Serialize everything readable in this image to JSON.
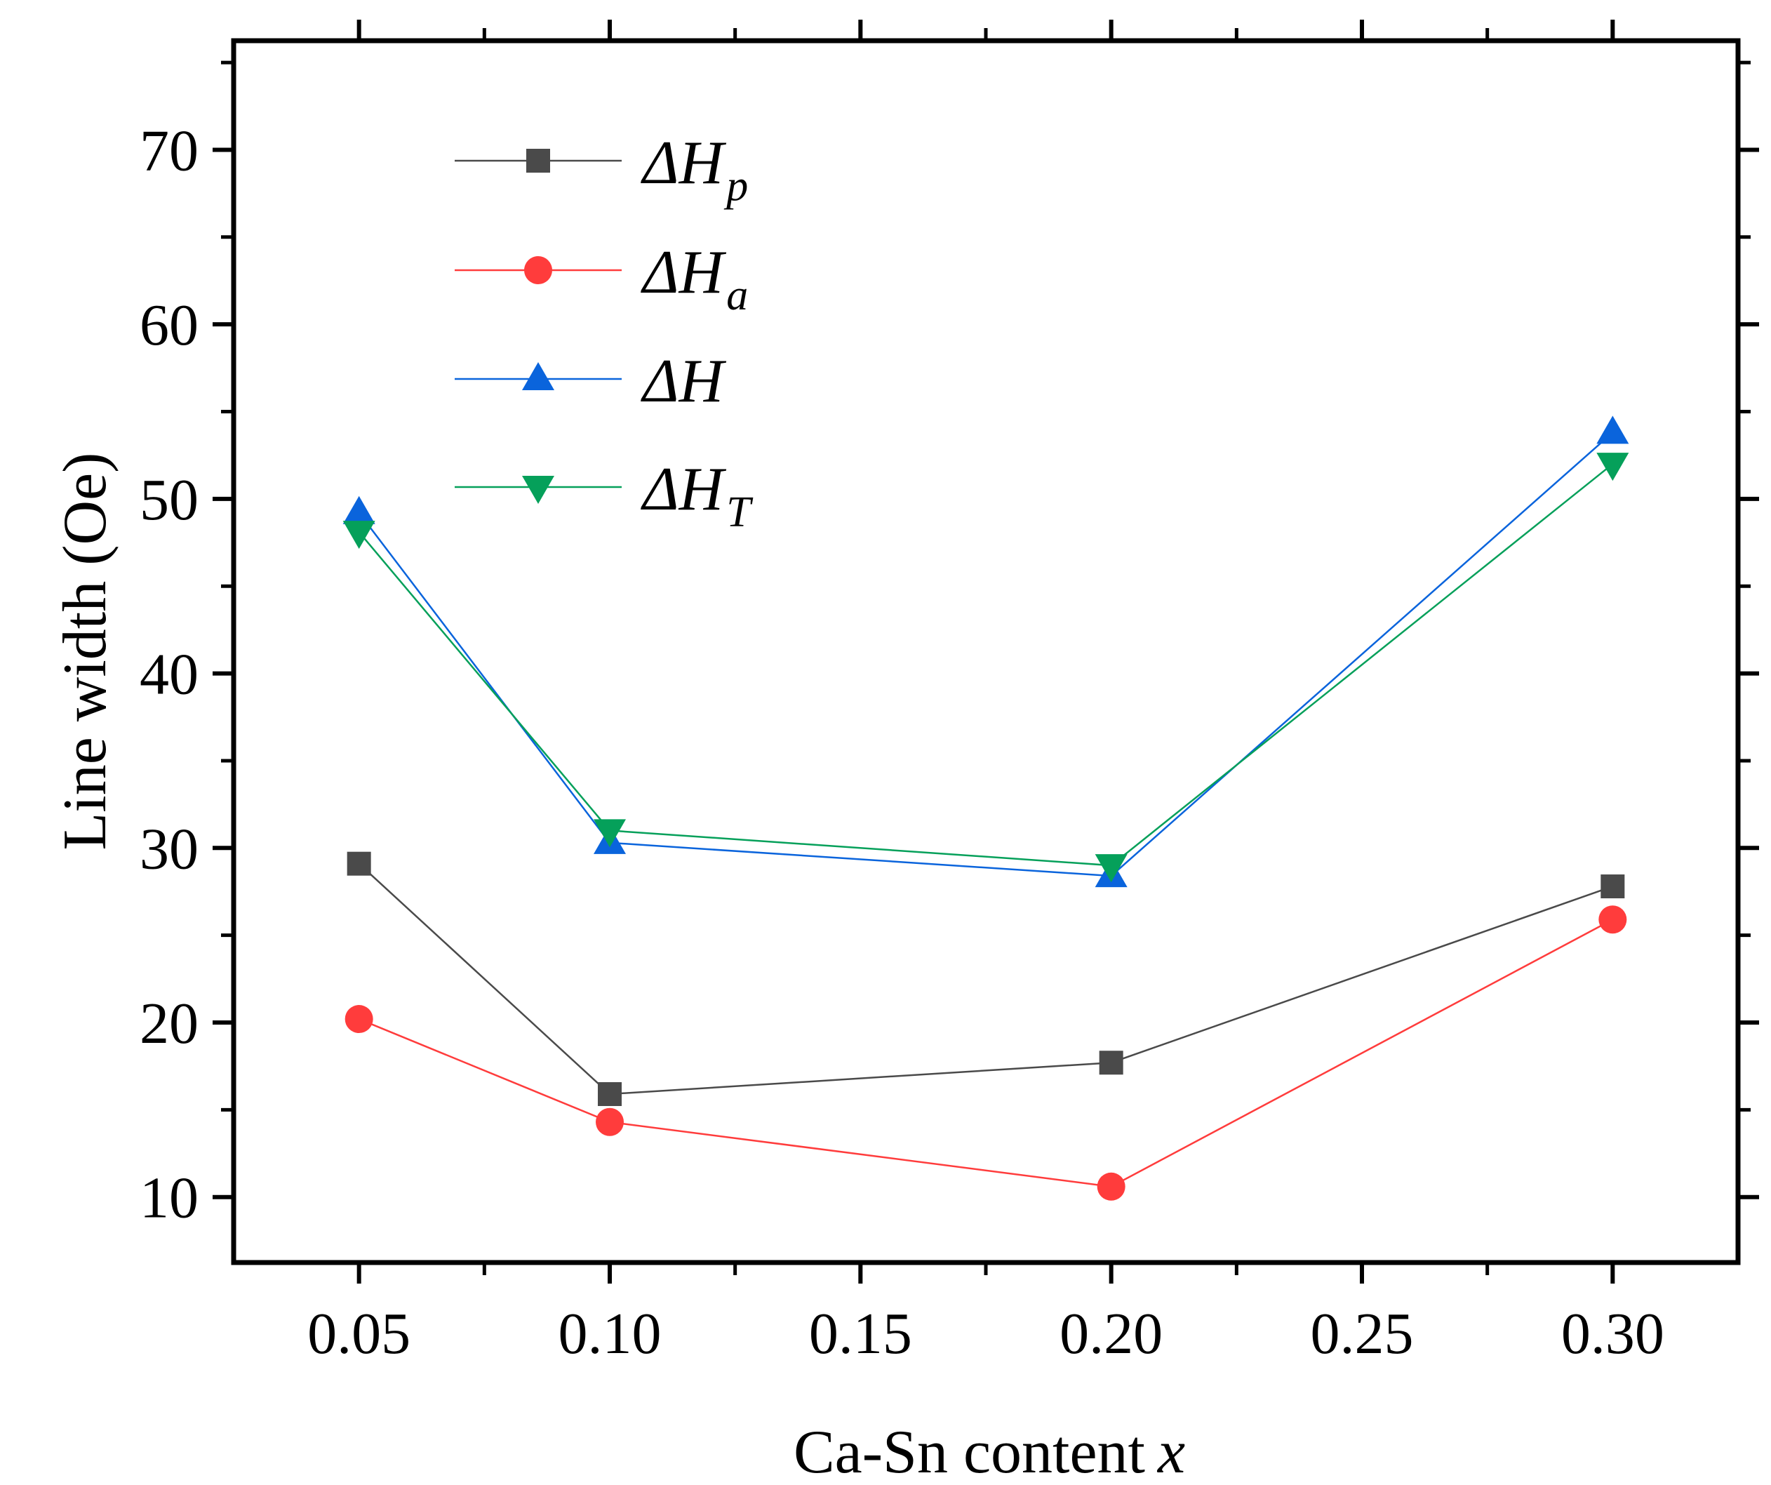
{
  "chart_data": {
    "type": "line",
    "title": "",
    "xlabel": "Ca-Sn content",
    "xlabel_var": "x",
    "ylabel": "Line width (Oe)",
    "xlim": [
      0.025,
      0.325
    ],
    "ylim": [
      6.25,
      76.25
    ],
    "x_ticks": [
      "0.05",
      "0.10",
      "0.15",
      "0.20",
      "0.25",
      "0.30"
    ],
    "y_ticks": [
      "10",
      "20",
      "30",
      "40",
      "50",
      "60",
      "70"
    ],
    "x": [
      0.05,
      0.1,
      0.2,
      0.3
    ],
    "grid": false,
    "legend_position": "top-left",
    "series": [
      {
        "name": "ΔH",
        "subscript": "p",
        "color": "#4a4a4a",
        "marker": "square",
        "values": [
          29.1,
          15.9,
          17.7,
          27.8
        ]
      },
      {
        "name": "ΔH",
        "subscript": "a",
        "color": "#ff3c3c",
        "marker": "circle",
        "values": [
          20.2,
          14.3,
          10.6,
          25.9
        ]
      },
      {
        "name": "ΔH",
        "subscript": "",
        "color": "#0a64dc",
        "marker": "triangle-up",
        "values": [
          49.2,
          30.3,
          28.4,
          53.8
        ]
      },
      {
        "name": "ΔH",
        "subscript": "T",
        "color": "#05a05a",
        "marker": "triangle-down",
        "values": [
          48.1,
          31.0,
          29.0,
          52.0
        ]
      }
    ]
  }
}
